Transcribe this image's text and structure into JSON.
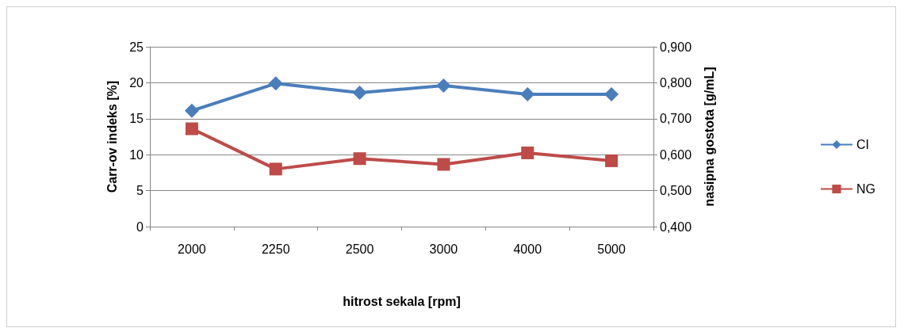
{
  "chart_data": {
    "type": "line",
    "xlabel": "hitrost sekala [rpm]",
    "ylabel": "Carr-ov indeks [%]",
    "y2label": "nasipna gostota [g/mL]",
    "categories": [
      "2000",
      "2250",
      "2500",
      "3000",
      "4000",
      "5000"
    ],
    "series": [
      {
        "name": "CI",
        "color": "#4a7ebb",
        "marker": "diamond",
        "values": [
          16.1,
          19.9,
          18.6,
          19.6,
          18.4,
          18.4
        ]
      },
      {
        "name": "NG",
        "color": "#be4b48",
        "marker": "square",
        "axis": "y2",
        "values": [
          0.672,
          0.56,
          0.589,
          0.573,
          0.605,
          0.583
        ]
      }
    ],
    "ylim": [
      0,
      25
    ],
    "yticks": [
      0,
      5,
      10,
      15,
      20,
      25
    ],
    "y2lim": [
      0.4,
      0.9
    ],
    "y2ticks": [
      {
        "value": 0.4,
        "label": "0,400"
      },
      {
        "value": 0.5,
        "label": "0,500"
      },
      {
        "value": 0.6,
        "label": "0,600"
      },
      {
        "value": 0.7,
        "label": "0,700"
      },
      {
        "value": 0.8,
        "label": "0,800"
      },
      {
        "value": 0.9,
        "label": "0,900"
      }
    ],
    "grid": "y",
    "legend": "right"
  }
}
